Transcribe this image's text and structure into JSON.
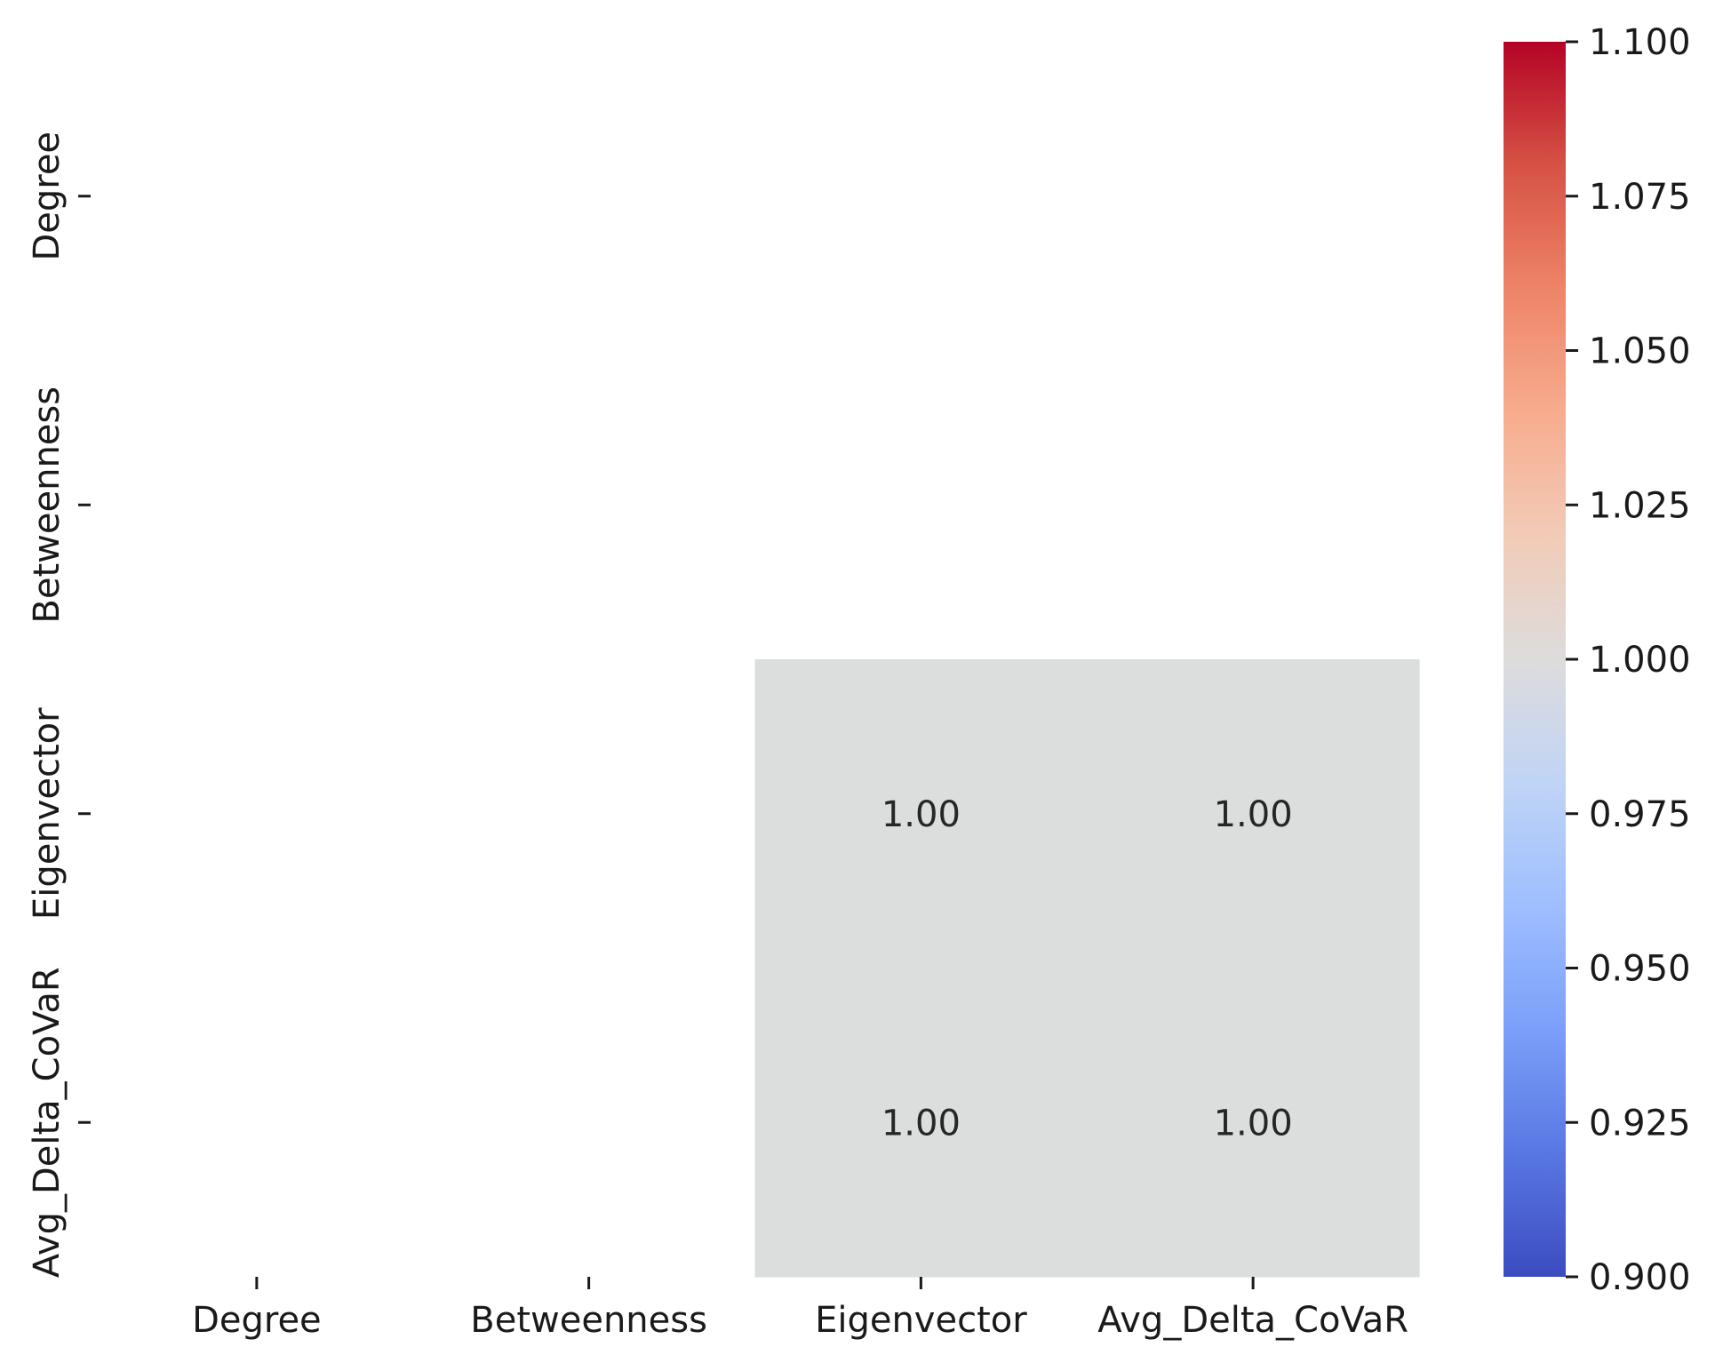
{
  "chart_data": {
    "type": "heatmap",
    "title": "",
    "xlabel": "",
    "ylabel": "",
    "x_categories": [
      "Degree",
      "Betweenness",
      "Eigenvector",
      "Avg_Delta_CoVaR"
    ],
    "y_categories": [
      "Degree",
      "Betweenness",
      "Eigenvector",
      "Avg_Delta_CoVaR"
    ],
    "values": [
      [
        null,
        null,
        null,
        null
      ],
      [
        null,
        null,
        null,
        null
      ],
      [
        null,
        null,
        1.0,
        1.0
      ],
      [
        null,
        null,
        1.0,
        1.0
      ]
    ],
    "cell_labels": [
      [
        null,
        null,
        null,
        null
      ],
      [
        null,
        null,
        null,
        null
      ],
      [
        null,
        null,
        "1.00",
        "1.00"
      ],
      [
        null,
        null,
        "1.00",
        "1.00"
      ]
    ],
    "colorbar": {
      "colormap": "coolwarm",
      "vmin": 0.9,
      "vmax": 1.1,
      "ticks": [
        0.9,
        0.925,
        0.95,
        0.975,
        1.0,
        1.025,
        1.05,
        1.075,
        1.1
      ],
      "tick_labels": [
        "0.900",
        "0.925",
        "0.950",
        "0.975",
        "1.000",
        "1.025",
        "1.050",
        "1.075",
        "1.100"
      ],
      "colors": [
        "#3b4cc0",
        "#5977e3",
        "#7b9ff9",
        "#9ebeff",
        "#c0d4f5",
        "#dddcdc",
        "#f2cbb7",
        "#f7ac8e",
        "#ee8468",
        "#d65244",
        "#b40426"
      ]
    },
    "cell_color": "#dcdddd",
    "grid": false
  }
}
